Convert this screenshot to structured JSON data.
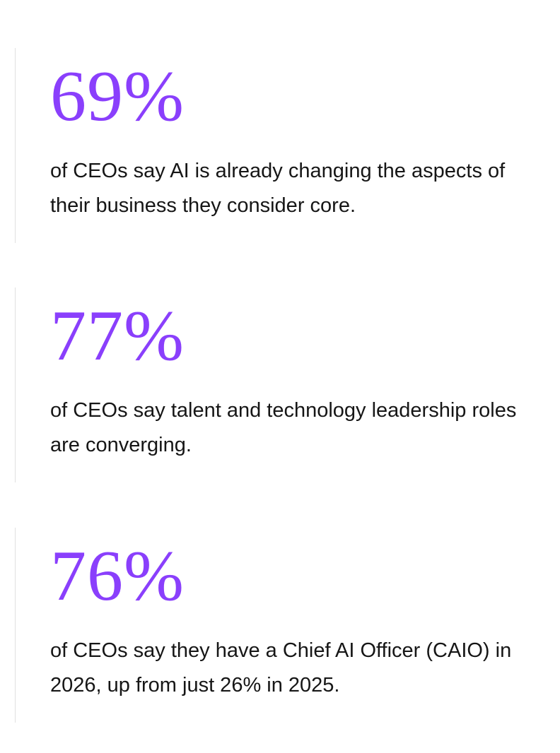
{
  "stats": [
    {
      "value": "69%",
      "text": "of CEOs say AI is already changing the aspects of their business they consider core."
    },
    {
      "value": "77%",
      "text": "of CEOs say talent and technology leadership roles are converging."
    },
    {
      "value": "76%",
      "text": "of CEOs say they have a Chief AI Officer (CAIO) in 2026, up from just 26% in 2025."
    }
  ]
}
